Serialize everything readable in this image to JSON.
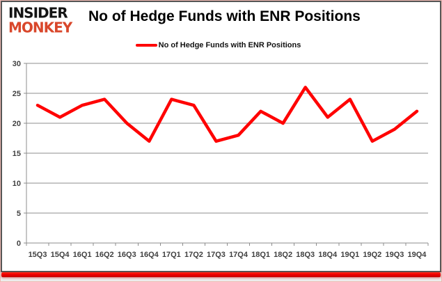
{
  "brand": {
    "line1": "INSIDER",
    "line2": "MONKEY"
  },
  "header": {
    "title": "No of Hedge Funds with ENR Positions"
  },
  "legend": {
    "label": "No of Hedge Funds with ENR Positions"
  },
  "colors": {
    "series": "#ff0000",
    "logo_accent": "#d9472b",
    "grid": "#8c8c8c",
    "axis_text": "#3f3f3f",
    "accent_bar": "#e60000",
    "card_border": "#565656"
  },
  "chart_data": {
    "type": "line",
    "title": "No of Hedge Funds with ENR Positions",
    "categories": [
      "15Q3",
      "15Q4",
      "16Q1",
      "16Q2",
      "16Q3",
      "16Q4",
      "17Q1",
      "17Q2",
      "17Q3",
      "17Q4",
      "18Q1",
      "18Q2",
      "18Q3",
      "18Q4",
      "19Q1",
      "19Q2",
      "19Q3",
      "19Q4"
    ],
    "series": [
      {
        "name": "No of Hedge Funds with ENR Positions",
        "color": "#ff0000",
        "values": [
          23,
          21,
          23,
          24,
          20,
          17,
          24,
          23,
          17,
          18,
          22,
          20,
          26,
          21,
          24,
          17,
          19,
          22
        ]
      }
    ],
    "xlabel": "",
    "ylabel": "",
    "ylim": [
      0,
      30
    ],
    "ytick_step": 5,
    "grid": true,
    "legend_position": "top-center"
  }
}
